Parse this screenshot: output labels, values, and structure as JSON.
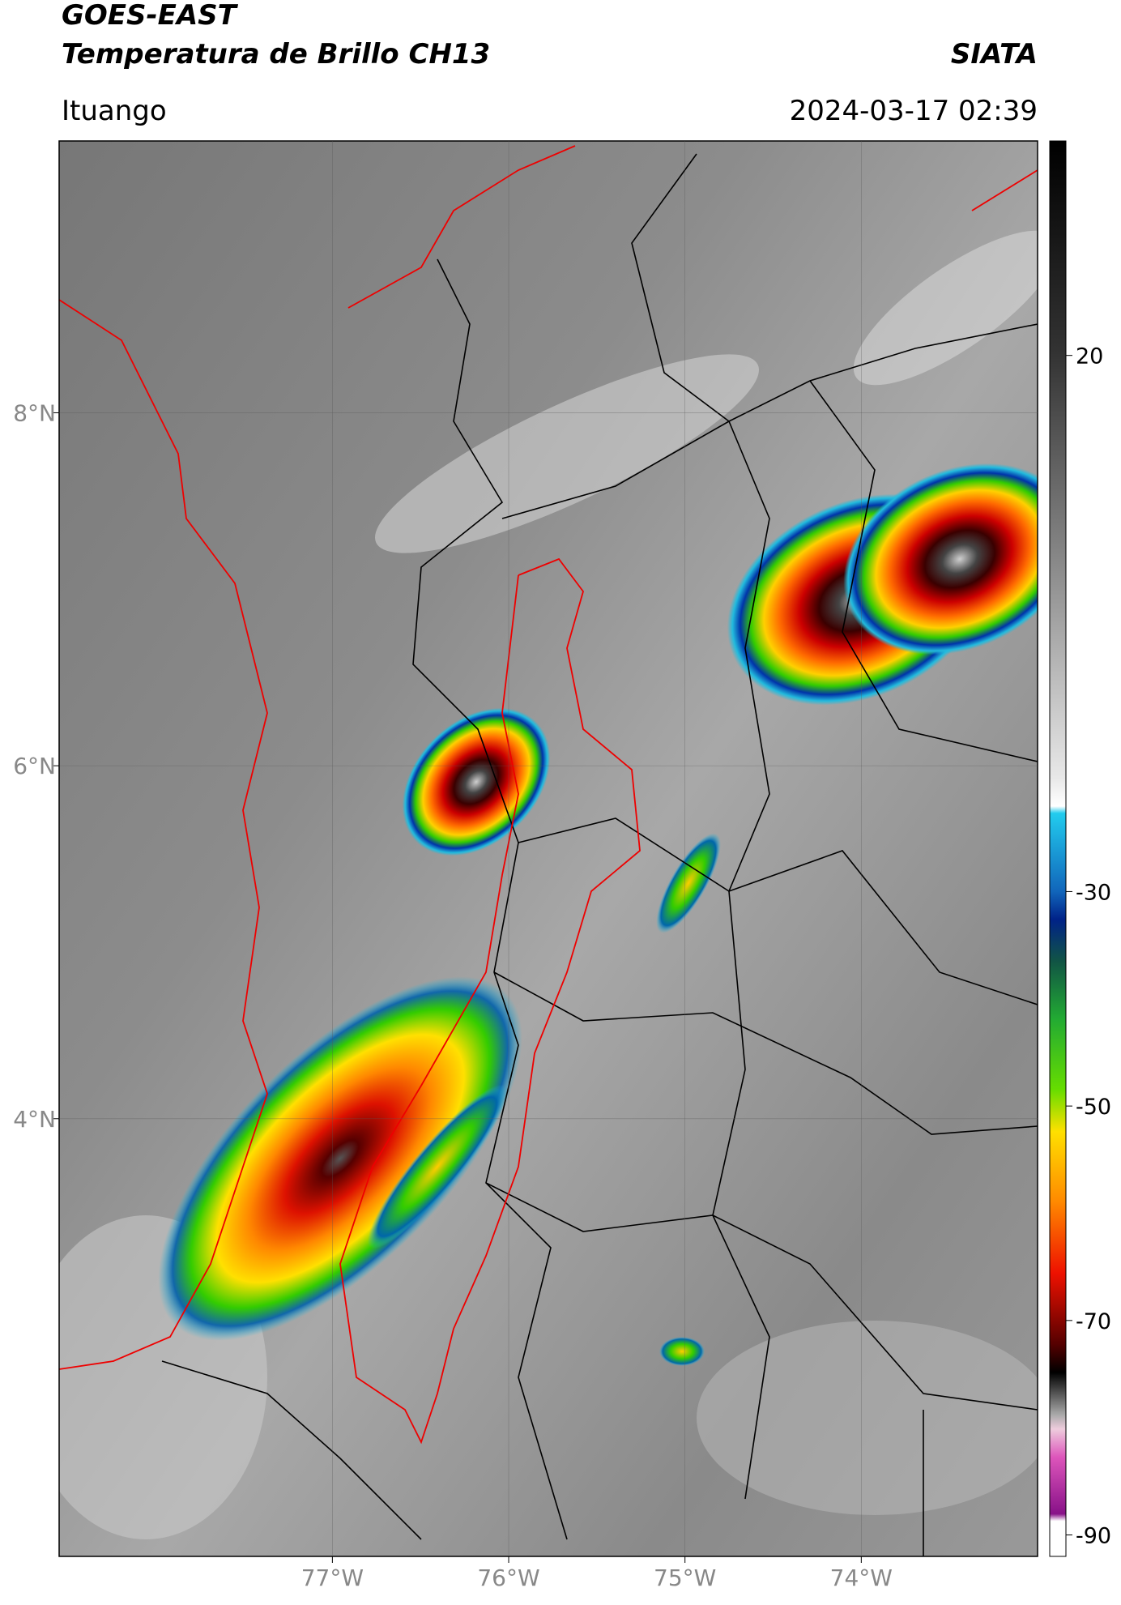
{
  "header": {
    "title": "GOES-EAST",
    "subtitle": "Temperatura de Brillo CH13",
    "brand": "SIATA",
    "location": "Ituango",
    "datetime": "2024-03-17 02:39"
  },
  "map": {
    "xlim": [
      -78.55,
      -73.0
    ],
    "ylim": [
      1.52,
      9.54
    ],
    "xticks": [
      {
        "value": -77,
        "label": "77°W"
      },
      {
        "value": -76,
        "label": "76°W"
      },
      {
        "value": -75,
        "label": "75°W"
      },
      {
        "value": -74,
        "label": "74°W"
      }
    ],
    "yticks": [
      {
        "value": 8,
        "label": "8°N"
      },
      {
        "value": 6,
        "label": "6°N"
      },
      {
        "value": 4,
        "label": "4°N"
      }
    ],
    "grid": true
  },
  "colorbar": {
    "lim": [
      -92,
      40
    ],
    "ticks": [
      20,
      -30,
      -50,
      -70,
      -90
    ]
  }
}
